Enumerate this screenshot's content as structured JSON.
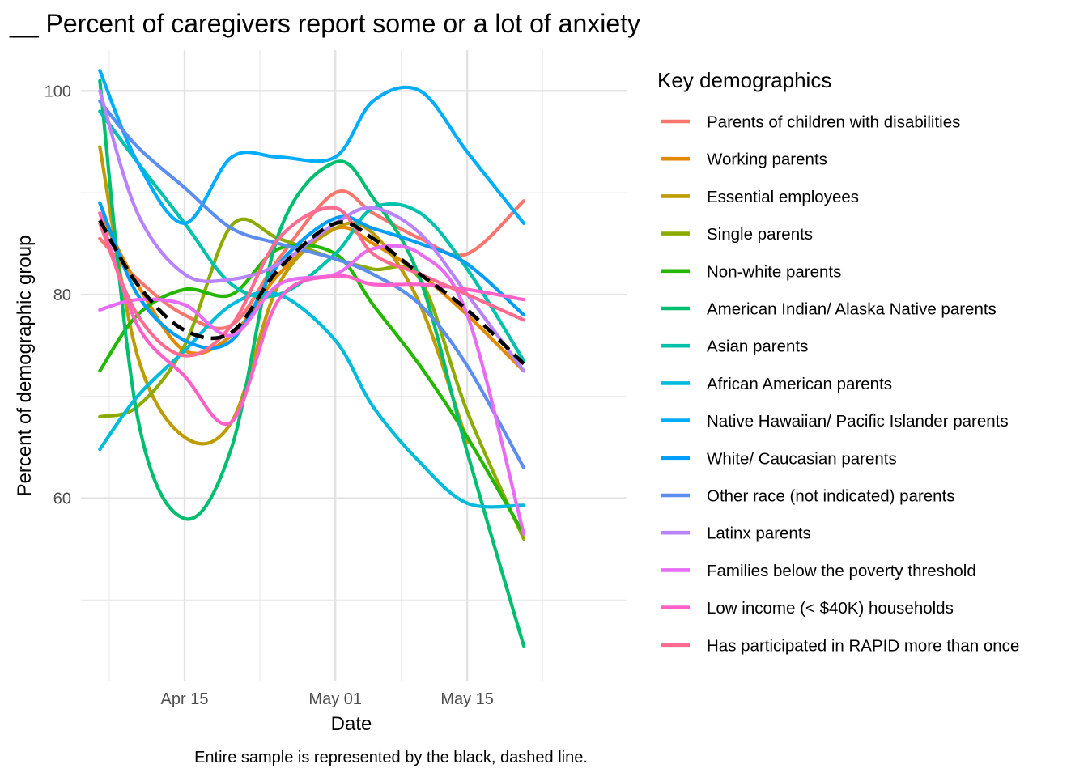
{
  "chart_data": {
    "type": "line",
    "title": "__ Percent of caregivers report some or a lot of anxiety",
    "xlabel": "Date",
    "ylabel": "Percent of demographic group",
    "caption": "Entire sample is represented by the black, dashed line.",
    "legend_title": "Key demographics",
    "legend_position": "right",
    "grid": true,
    "xlim_days": [
      -11,
      47
    ],
    "ylim": [
      42,
      104
    ],
    "x_ticks": [
      {
        "label": "Apr 15",
        "day": 0
      },
      {
        "label": "May 01",
        "day": 16
      },
      {
        "label": "May 15",
        "day": 30
      }
    ],
    "y_ticks": [
      60,
      80,
      100
    ],
    "x": [
      "Apr 06",
      "Apr 10",
      "Apr 15",
      "Apr 20",
      "Apr 25",
      "May 01",
      "May 05",
      "May 10",
      "May 15",
      "May 21"
    ],
    "overall": {
      "name": "Entire sample",
      "color": "#000000",
      "dashed": true,
      "values": [
        87.3,
        81.0,
        76.5,
        76.3,
        82.5,
        87.0,
        85.5,
        82.0,
        78.5,
        73.2
      ]
    },
    "series": [
      {
        "name": "Parents of children with disabilities",
        "color": "#F8766D",
        "values": [
          85.5,
          81.5,
          78.0,
          77.0,
          83.5,
          90.0,
          88.0,
          85.5,
          84.0,
          89.2
        ]
      },
      {
        "name": "Working parents",
        "color": "#E18A00",
        "values": [
          88.0,
          81.0,
          74.5,
          76.0,
          82.0,
          86.5,
          85.0,
          82.0,
          78.0,
          72.5
        ]
      },
      {
        "name": "Essential employees",
        "color": "#BE9C00",
        "values": [
          94.5,
          74.0,
          66.0,
          67.5,
          81.0,
          86.5,
          86.0,
          79.0,
          65.5,
          null
        ]
      },
      {
        "name": "Single parents",
        "color": "#8CAB00",
        "values": [
          68.0,
          69.0,
          75.0,
          86.8,
          85.5,
          83.5,
          82.5,
          81.5,
          68.5,
          56.0
        ]
      },
      {
        "name": "Non-white parents",
        "color": "#24B700",
        "values": [
          72.5,
          78.0,
          80.5,
          80.0,
          84.5,
          84.0,
          79.0,
          73.0,
          66.0,
          56.5
        ]
      },
      {
        "name": "American Indian/ Alaska Native parents",
        "color": "#00BE70",
        "values": [
          101.0,
          68.0,
          58.0,
          65.0,
          86.0,
          93.0,
          89.5,
          81.5,
          64.5,
          45.5
        ]
      },
      {
        "name": "Asian parents",
        "color": "#00C1AB",
        "values": [
          98.0,
          93.0,
          87.0,
          81.0,
          80.0,
          84.0,
          88.5,
          88.0,
          82.5,
          73.5
        ]
      },
      {
        "name": "African American parents",
        "color": "#00BBDA",
        "values": [
          64.8,
          70.0,
          74.5,
          79.0,
          80.0,
          75.5,
          69.0,
          63.5,
          59.5,
          59.3
        ]
      },
      {
        "name": "Native Hawaiian/ Pacific Islander parents",
        "color": "#00ACFC",
        "values": [
          102.0,
          93.0,
          87.0,
          93.5,
          93.5,
          93.5,
          99.0,
          100.0,
          94.0,
          87.0
        ]
      },
      {
        "name": "White/ Caucasian parents",
        "color": "#009EF8",
        "values": [
          89.0,
          80.0,
          75.5,
          75.5,
          83.0,
          87.5,
          86.5,
          85.0,
          83.0,
          78.0
        ]
      },
      {
        "name": "Other race (not indicated) parents",
        "color": "#5B8EF0",
        "values": [
          99.0,
          94.5,
          90.5,
          86.5,
          85.0,
          83.5,
          82.0,
          79.0,
          73.0,
          63.0
        ]
      },
      {
        "name": "Latinx parents",
        "color": "#B983FF",
        "values": [
          100.0,
          88.0,
          82.0,
          81.5,
          83.0,
          87.0,
          88.5,
          86.0,
          80.0,
          72.5
        ]
      },
      {
        "name": "Families below the poverty threshold",
        "color": "#E76BF3",
        "values": [
          78.5,
          79.5,
          79.0,
          76.0,
          81.0,
          82.0,
          84.5,
          84.0,
          78.0,
          56.5
        ]
      },
      {
        "name": "Low income (< $40K) households",
        "color": "#FF61C9",
        "values": [
          88.0,
          77.0,
          72.0,
          67.5,
          79.5,
          81.8,
          81.0,
          81.0,
          80.5,
          79.5
        ]
      },
      {
        "name": "Has participated in RAPID more than once",
        "color": "#FF6C91",
        "values": [
          87.0,
          78.0,
          74.0,
          77.0,
          85.5,
          88.5,
          84.0,
          82.0,
          80.0,
          77.5
        ]
      }
    ]
  }
}
